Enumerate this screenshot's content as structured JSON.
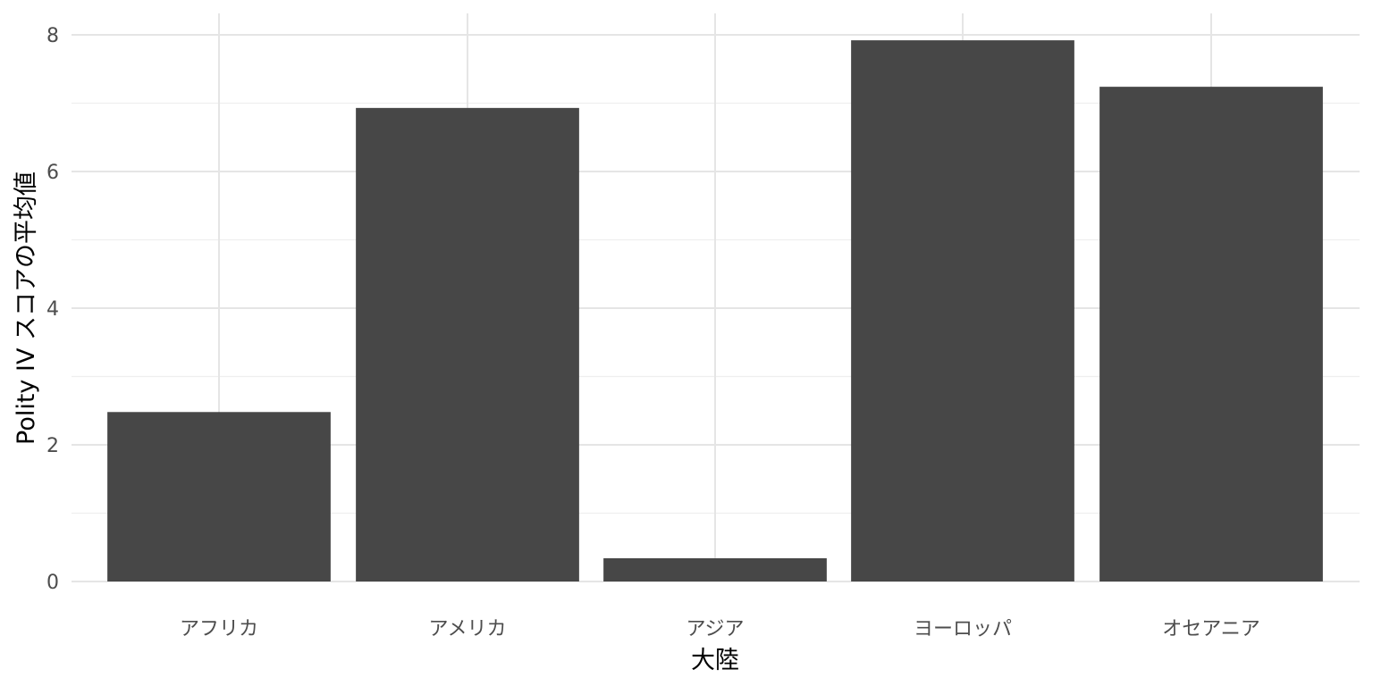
{
  "chart_data": {
    "type": "bar",
    "categories": [
      "アフリカ",
      "アメリカ",
      "アジア",
      "ヨーロッパ",
      "オセアニア"
    ],
    "values": [
      2.48,
      6.93,
      0.34,
      7.92,
      7.24
    ],
    "xlabel": "大陸",
    "ylabel": "Polity IV スコアの平均値",
    "ylim": [
      0,
      8
    ],
    "yticks": [
      0,
      2,
      4,
      6,
      8
    ],
    "grid": true,
    "bar_color": "#474747",
    "grid_color": "#e5e5e5"
  }
}
